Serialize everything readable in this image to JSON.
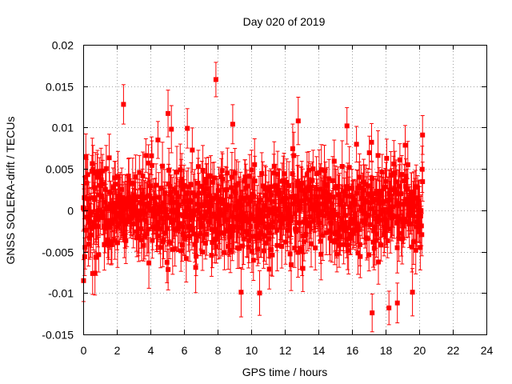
{
  "chart_data": {
    "type": "scatter",
    "title": "Day 020 of 2019",
    "xlabel": "GPS time / hours",
    "ylabel": "GNSS SOLERA-drift / TECUs",
    "xlim": [
      0,
      24
    ],
    "ylim": [
      -0.015,
      0.02
    ],
    "xticks": [
      0,
      2,
      4,
      6,
      8,
      10,
      12,
      14,
      16,
      18,
      20,
      22,
      24
    ],
    "xtick_labels": [
      "0",
      "2",
      "4",
      "6",
      "8",
      "10",
      "12",
      "14",
      "16",
      "18",
      "20",
      "22",
      "24"
    ],
    "yticks": [
      -0.015,
      -0.01,
      -0.005,
      0,
      0.005,
      0.01,
      0.015,
      0.02
    ],
    "ytick_labels": [
      "-0.015",
      "-0.01",
      "-0.005",
      "0",
      "0.005",
      "0.01",
      "0.015",
      "0.02"
    ],
    "grid": true,
    "series": [
      {
        "name": "SOLERA drift",
        "color": "#ff0000",
        "x_range": [
          0,
          20.2
        ],
        "sample_count": 900,
        "y_mean": 0.0,
        "y_std": 0.0028,
        "error_bar": 0.0025,
        "notable_points": [
          {
            "x": 2.4,
            "y": 0.0128
          },
          {
            "x": 5.05,
            "y": 0.0117
          },
          {
            "x": 5.25,
            "y": 0.0098
          },
          {
            "x": 6.2,
            "y": 0.0099
          },
          {
            "x": 7.9,
            "y": 0.0158
          },
          {
            "x": 8.9,
            "y": 0.0104
          },
          {
            "x": 12.8,
            "y": 0.0108
          },
          {
            "x": 15.7,
            "y": 0.0102
          },
          {
            "x": 20.2,
            "y": 0.0091
          },
          {
            "x": 17.2,
            "y": -0.0124
          },
          {
            "x": 18.2,
            "y": -0.0118
          },
          {
            "x": 18.7,
            "y": -0.0112
          },
          {
            "x": 10.5,
            "y": -0.01
          },
          {
            "x": 9.4,
            "y": -0.0099
          },
          {
            "x": 0.7,
            "y": -0.0076
          },
          {
            "x": 19.6,
            "y": -0.0099
          }
        ]
      }
    ]
  }
}
